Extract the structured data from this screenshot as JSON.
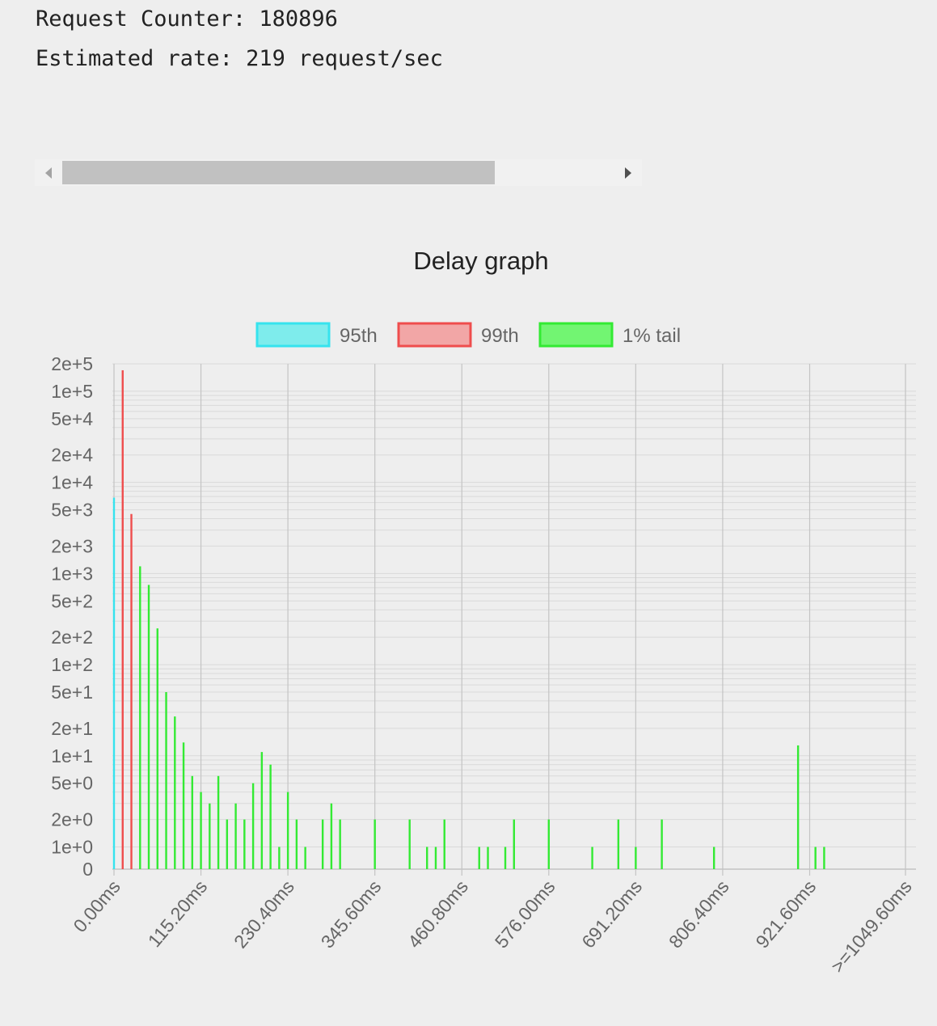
{
  "stats": {
    "counter_line": "Request Counter: 180896",
    "rate_line": "Estimated rate: 219 request/sec"
  },
  "chart_data": {
    "type": "bar",
    "title": "Delay graph",
    "y_scale": "log",
    "y_ticks": [
      "2e+5",
      "1e+5",
      "5e+4",
      "2e+4",
      "1e+4",
      "5e+3",
      "2e+3",
      "1e+3",
      "5e+2",
      "2e+2",
      "1e+2",
      "5e+1",
      "2e+1",
      "1e+1",
      "5e+0",
      "2e+0",
      "1e+0",
      "0"
    ],
    "x_tick_labels": [
      "0.00ms",
      "115.20ms",
      "230.40ms",
      "345.60ms",
      "460.80ms",
      "576.00ms",
      "691.20ms",
      "806.40ms",
      "921.60ms",
      ">=1049.60ms"
    ],
    "bin_width_ms": 11.52,
    "grid": true,
    "legend_position": "top",
    "series": [
      {
        "name": "95th",
        "color": "#36e3ee",
        "fill": "#7eecec",
        "points": [
          {
            "x_ms": 0.0,
            "value": 6800
          }
        ]
      },
      {
        "name": "99th",
        "color": "#ef4d4d",
        "fill": "#f2a6a6",
        "points": [
          {
            "x_ms": 11.52,
            "value": 170000
          },
          {
            "x_ms": 23.04,
            "value": 4500
          }
        ]
      },
      {
        "name": "1% tail",
        "color": "#33ea33",
        "fill": "#72f572",
        "points": [
          {
            "x_ms": 34.56,
            "value": 1200
          },
          {
            "x_ms": 46.08,
            "value": 750
          },
          {
            "x_ms": 57.6,
            "value": 250
          },
          {
            "x_ms": 69.12,
            "value": 50
          },
          {
            "x_ms": 80.64,
            "value": 27
          },
          {
            "x_ms": 92.16,
            "value": 14
          },
          {
            "x_ms": 103.68,
            "value": 6
          },
          {
            "x_ms": 115.2,
            "value": 4
          },
          {
            "x_ms": 126.72,
            "value": 3
          },
          {
            "x_ms": 138.24,
            "value": 6
          },
          {
            "x_ms": 149.76,
            "value": 2
          },
          {
            "x_ms": 161.28,
            "value": 3
          },
          {
            "x_ms": 172.8,
            "value": 2
          },
          {
            "x_ms": 184.32,
            "value": 5
          },
          {
            "x_ms": 195.84,
            "value": 11
          },
          {
            "x_ms": 207.36,
            "value": 8
          },
          {
            "x_ms": 218.88,
            "value": 1
          },
          {
            "x_ms": 230.4,
            "value": 4
          },
          {
            "x_ms": 241.92,
            "value": 2
          },
          {
            "x_ms": 253.44,
            "value": 1
          },
          {
            "x_ms": 276.48,
            "value": 2
          },
          {
            "x_ms": 288.0,
            "value": 3
          },
          {
            "x_ms": 299.52,
            "value": 2
          },
          {
            "x_ms": 345.6,
            "value": 2
          },
          {
            "x_ms": 391.68,
            "value": 2
          },
          {
            "x_ms": 414.72,
            "value": 1
          },
          {
            "x_ms": 426.24,
            "value": 1
          },
          {
            "x_ms": 437.76,
            "value": 2
          },
          {
            "x_ms": 483.84,
            "value": 1
          },
          {
            "x_ms": 495.36,
            "value": 1
          },
          {
            "x_ms": 518.4,
            "value": 1
          },
          {
            "x_ms": 529.92,
            "value": 2
          },
          {
            "x_ms": 576.0,
            "value": 2
          },
          {
            "x_ms": 633.6,
            "value": 1
          },
          {
            "x_ms": 668.16,
            "value": 2
          },
          {
            "x_ms": 691.2,
            "value": 1
          },
          {
            "x_ms": 725.76,
            "value": 2
          },
          {
            "x_ms": 794.88,
            "value": 1
          },
          {
            "x_ms": 906.24,
            "value": 13
          },
          {
            "x_ms": 929.28,
            "value": 1
          },
          {
            "x_ms": 940.8,
            "value": 1
          }
        ]
      }
    ]
  }
}
